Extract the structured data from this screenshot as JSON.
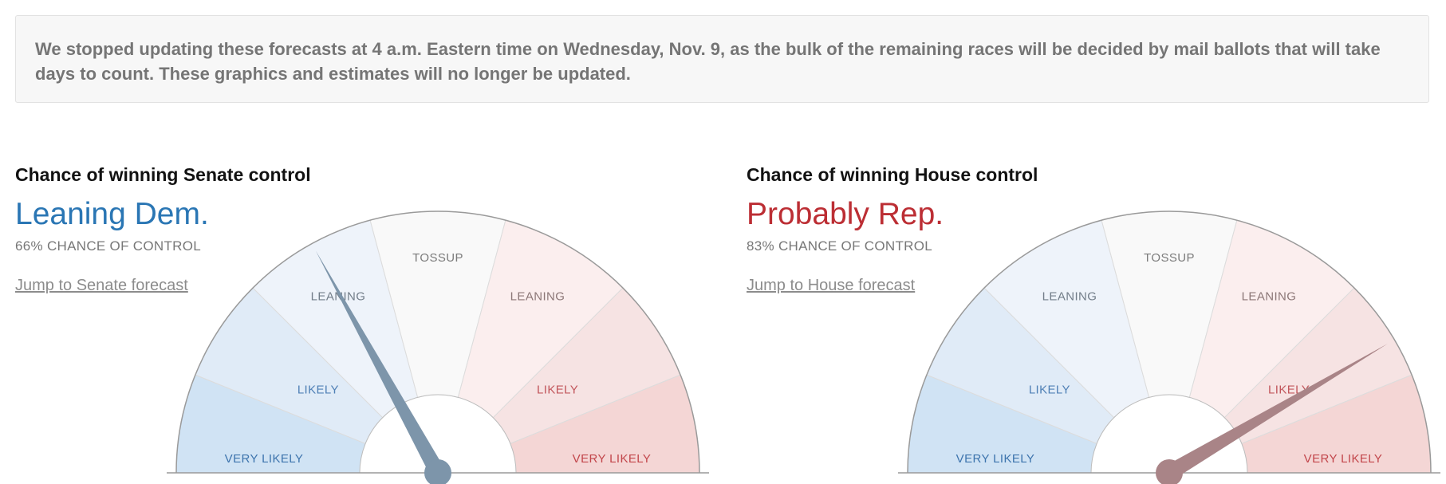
{
  "notice": {
    "text": "We stopped updating these forecasts at 4 a.m. Eastern time on Wednesday, Nov. 9, as the bulk of the remaining races will be decided by mail ballots that will take days to count. These graphics and estimates will no longer be updated."
  },
  "senate": {
    "title": "Chance of winning Senate control",
    "verdict": "Leaning Dem.",
    "chance": "66% CHANCE OF CONTROL",
    "link": "Jump to Senate forecast",
    "needle_party": "dem",
    "needle_probability_pct": 66
  },
  "house": {
    "title": "Chance of winning House control",
    "verdict": "Probably Rep.",
    "chance": "83% CHANCE OF CONTROL",
    "link": "Jump to House forecast",
    "needle_party": "rep",
    "needle_probability_pct": 83
  },
  "gauge": {
    "segments": [
      {
        "label": "VERY LIKELY",
        "color": "#d0e3f4",
        "text_color": "#3d74ad"
      },
      {
        "label": "LIKELY",
        "color": "#e0ebf7",
        "text_color": "#4f80b6"
      },
      {
        "label": "LEANING",
        "color": "#eef3fa",
        "text_color": "#727d89"
      },
      {
        "label": "TOSSUP",
        "color": "#f9f9f9",
        "text_color": "#7b7b7b"
      },
      {
        "label": "LEANING",
        "color": "#fbeeee",
        "text_color": "#8c7777"
      },
      {
        "label": "LIKELY",
        "color": "#f6e3e3",
        "text_color": "#c2575c"
      },
      {
        "label": "VERY LIKELY",
        "color": "#f4d6d5",
        "text_color": "#c2464b"
      }
    ],
    "needle_colors": {
      "dem": "#7d95aa",
      "rep": "#a98487"
    }
  }
}
